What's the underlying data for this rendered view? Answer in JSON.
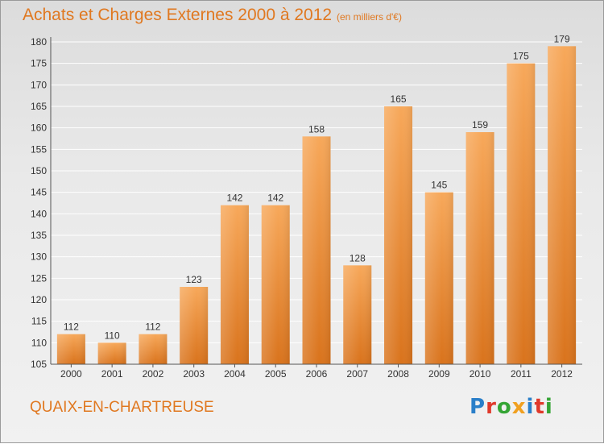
{
  "header": {
    "title": "Achats et Charges Externes 2000 à 2012",
    "subtitle": "(en milliers d'€)"
  },
  "footer": {
    "commune": "QUAIX-EN-CHARTREUSE",
    "logo_text": "Proxiti",
    "logo_letters": [
      {
        "char": "P",
        "color": "#2a7fc9"
      },
      {
        "char": "r",
        "color": "#e0392b"
      },
      {
        "char": "o",
        "color": "#35a535"
      },
      {
        "char": "x",
        "color": "#f0a020"
      },
      {
        "char": "i",
        "color": "#2a7fc9"
      },
      {
        "char": "t",
        "color": "#e0392b"
      },
      {
        "char": "i",
        "color": "#35a535"
      }
    ]
  },
  "colors": {
    "accent": "#e07820",
    "bar_top": "#f7a85a",
    "bar_bottom": "#d9731c",
    "grid": "#ffffff"
  },
  "chart_data": {
    "type": "bar",
    "title": "Achats et Charges Externes 2000 à 2012",
    "subtitle": "(en milliers d'€)",
    "xlabel": "",
    "ylabel": "",
    "categories": [
      "2000",
      "2001",
      "2002",
      "2003",
      "2004",
      "2005",
      "2006",
      "2007",
      "2008",
      "2009",
      "2010",
      "2011",
      "2012"
    ],
    "values": [
      112,
      110,
      112,
      123,
      142,
      142,
      158,
      128,
      165,
      145,
      159,
      175,
      179
    ],
    "ylim": [
      105,
      180
    ],
    "yticks": [
      105,
      110,
      115,
      120,
      125,
      130,
      135,
      140,
      145,
      150,
      155,
      160,
      165,
      170,
      175,
      180
    ],
    "grid": true,
    "legend": "none",
    "data_labels": true
  }
}
